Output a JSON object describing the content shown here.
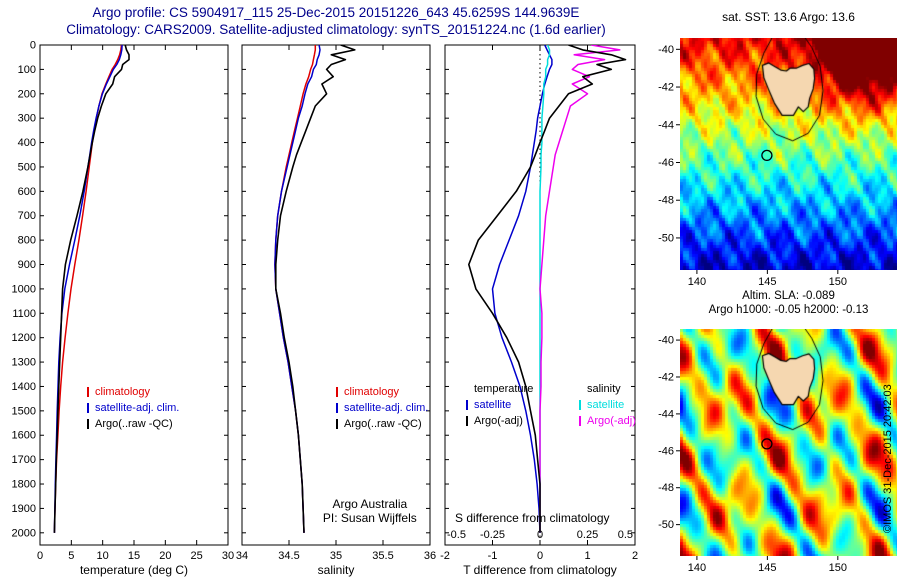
{
  "header": {
    "title_line1": "Argo profile: CS 5904917_115 25-Dec-2015 20151226_643 45.6259S 144.9639E",
    "title_line2": "Climatology: CARS2009. Satellite-adjusted climatology: synTS_20151224.nc (1.6d earlier)"
  },
  "credit": "©IMOS 31-Dec-2015 20:42:03",
  "colors": {
    "climatology": "#e00000",
    "satellite_adjusted": "#0000cc",
    "argo": "#000000",
    "satellite_salinity": "#00dddd",
    "argo_salinity": "#ee00ee",
    "title": "#00008b"
  },
  "chart_data": [
    {
      "id": "temperature_profile",
      "type": "line",
      "xlabel": "temperature (deg C)",
      "xlim": [
        0,
        30
      ],
      "xticks": [
        0,
        5,
        10,
        15,
        20,
        25,
        30
      ],
      "ylim": [
        0,
        2050
      ],
      "yticks": [
        0,
        100,
        200,
        300,
        400,
        500,
        600,
        700,
        800,
        900,
        1000,
        1100,
        1200,
        1300,
        1400,
        1500,
        1600,
        1700,
        1800,
        1900,
        2000
      ],
      "depth": [
        0,
        20,
        40,
        60,
        80,
        100,
        130,
        160,
        200,
        250,
        300,
        350,
        400,
        450,
        500,
        600,
        700,
        800,
        900,
        1000,
        1100,
        1200,
        1300,
        1400,
        1500,
        1600,
        1700,
        1800,
        1900,
        2000
      ],
      "series": [
        {
          "id": "climatology",
          "label": "climatology",
          "color": "#e00000",
          "values": [
            13.0,
            12.9,
            12.7,
            12.4,
            12.0,
            11.5,
            11.0,
            10.5,
            9.9,
            9.4,
            9.0,
            8.65,
            8.35,
            8.1,
            7.85,
            7.35,
            6.8,
            6.2,
            5.55,
            4.95,
            4.45,
            4.0,
            3.6,
            3.3,
            3.05,
            2.85,
            2.65,
            2.5,
            2.4,
            2.3
          ]
        },
        {
          "id": "satellite-adj-clim",
          "label": "satellite-adj. clim.",
          "color": "#0000cc",
          "values": [
            13.1,
            13.05,
            12.9,
            12.65,
            12.25,
            11.7,
            11.15,
            10.6,
            9.95,
            9.4,
            8.95,
            8.57,
            8.23,
            7.94,
            7.65,
            7.05,
            6.35,
            5.55,
            4.7,
            3.95,
            3.5,
            3.2,
            3.0,
            2.88,
            2.75,
            2.65,
            2.53,
            2.44,
            2.38,
            2.3
          ]
        },
        {
          "id": "argo-raw",
          "label": "Argo(..raw -QC)",
          "color": "#000000",
          "width": 1.6,
          "values": [
            13.6,
            13.8,
            14.2,
            14.2,
            13.2,
            13.0,
            11.9,
            11.6,
            10.5,
            9.8,
            9.2,
            8.75,
            8.35,
            8.0,
            7.65,
            6.85,
            5.9,
            4.9,
            4.05,
            3.6,
            3.45,
            3.3,
            3.15,
            3.0,
            2.85,
            2.75,
            2.6,
            2.5,
            2.4,
            2.3
          ]
        }
      ],
      "legend": [
        {
          "label": "climatology",
          "color": "#e00000"
        },
        {
          "label": "satellite-adj. clim.",
          "color": "#0000cc"
        },
        {
          "label": "Argo(..raw -QC)",
          "color": "#000000"
        }
      ]
    },
    {
      "id": "salinity_profile",
      "type": "line",
      "xlabel": "salinity",
      "xlim": [
        34,
        36
      ],
      "xticks": [
        34,
        34.5,
        35,
        35.5,
        36
      ],
      "ylim": [
        0,
        2050
      ],
      "yticks": [
        0,
        100,
        200,
        300,
        400,
        500,
        600,
        700,
        800,
        900,
        1000,
        1100,
        1200,
        1300,
        1400,
        1500,
        1600,
        1700,
        1800,
        1900,
        2000
      ],
      "depth": [
        0,
        20,
        40,
        60,
        80,
        100,
        130,
        160,
        200,
        250,
        300,
        350,
        400,
        450,
        500,
        600,
        700,
        800,
        900,
        1000,
        1100,
        1200,
        1300,
        1400,
        1500,
        1600,
        1700,
        1800,
        1900,
        2000
      ],
      "series": [
        {
          "id": "climatology",
          "label": "climatology",
          "color": "#e00000",
          "values": [
            34.78,
            34.78,
            34.77,
            34.76,
            34.75,
            34.73,
            34.71,
            34.68,
            34.65,
            34.62,
            34.59,
            34.56,
            34.53,
            34.5,
            34.47,
            34.42,
            34.38,
            34.36,
            34.35,
            34.36,
            34.4,
            34.44,
            34.49,
            34.53,
            34.57,
            34.6,
            34.62,
            34.64,
            34.65,
            34.66
          ]
        },
        {
          "id": "satellite-adj-clim",
          "label": "satellite-adj. clim.",
          "color": "#0000cc",
          "values": [
            34.82,
            34.83,
            34.82,
            34.8,
            34.79,
            34.76,
            34.74,
            34.7,
            34.67,
            34.64,
            34.6,
            34.57,
            34.54,
            34.51,
            34.48,
            34.42,
            34.38,
            34.36,
            34.35,
            34.36,
            34.4,
            34.44,
            34.49,
            34.53,
            34.57,
            34.6,
            34.62,
            34.64,
            34.65,
            34.66
          ]
        },
        {
          "id": "argo-raw",
          "label": "Argo(..raw -QC)",
          "color": "#000000",
          "width": 1.6,
          "values": [
            35.05,
            35.2,
            34.95,
            35.1,
            34.95,
            34.9,
            34.97,
            34.85,
            34.9,
            34.78,
            34.73,
            34.68,
            34.63,
            34.58,
            34.54,
            34.47,
            34.41,
            34.38,
            34.36,
            34.36,
            34.41,
            34.45,
            34.5,
            34.54,
            34.57,
            34.6,
            34.62,
            34.64,
            34.65,
            34.66
          ]
        }
      ],
      "legend": [
        {
          "label": "climatology",
          "color": "#e00000"
        },
        {
          "label": "satellite-adj. clim.",
          "color": "#0000cc"
        },
        {
          "label": "Argo(..raw -QC)",
          "color": "#000000"
        }
      ],
      "annotation": [
        "Argo Australia",
        "PI: Susan Wijffels"
      ]
    },
    {
      "id": "difference_profile",
      "type": "line",
      "xlabel": "T difference from climatology",
      "xlim": [
        -2,
        2
      ],
      "xticks": [
        -2,
        -1,
        0,
        1,
        2
      ],
      "zero_line": true,
      "ylim": [
        0,
        2050
      ],
      "yticks": [
        0,
        100,
        200,
        300,
        400,
        500,
        600,
        700,
        800,
        900,
        1000,
        1100,
        1200,
        1300,
        1400,
        1500,
        1600,
        1700,
        1800,
        1900,
        2000
      ],
      "depth": [
        0,
        20,
        40,
        60,
        80,
        100,
        130,
        160,
        200,
        250,
        300,
        350,
        400,
        450,
        500,
        600,
        700,
        800,
        900,
        1000,
        1100,
        1200,
        1300,
        1400,
        1500,
        1600,
        1700,
        1800,
        1900,
        2000
      ],
      "s_axis": {
        "label": "S difference from climatology",
        "ticks": [
          -0.5,
          -0.25,
          0,
          0.25,
          0.5
        ],
        "scale": 4
      },
      "series": [
        {
          "id": "t-diff-satellite",
          "label": "satellite",
          "color": "#0000cc",
          "scale": 1,
          "values": [
            0.1,
            0.15,
            0.2,
            0.25,
            0.25,
            0.2,
            0.15,
            0.1,
            0.05,
            0,
            -0.05,
            -0.08,
            -0.12,
            -0.16,
            -0.2,
            -0.3,
            -0.45,
            -0.65,
            -0.85,
            -1.0,
            -0.95,
            -0.8,
            -0.6,
            -0.42,
            -0.3,
            -0.2,
            -0.12,
            -0.06,
            -0.02,
            0
          ]
        },
        {
          "id": "s-diff-satellite",
          "label": "satellite",
          "color": "#00dddd",
          "scale": 4,
          "values": [
            0.04,
            0.05,
            0.05,
            0.04,
            0.04,
            0.03,
            0.03,
            0.02,
            0.02,
            0.015,
            0.01,
            0.01,
            0.01,
            0.005,
            0.005,
            0,
            0,
            0,
            0,
            0,
            0,
            0,
            0,
            0,
            0,
            0,
            0,
            0,
            0,
            0
          ]
        },
        {
          "id": "s-diff-argo",
          "label": "Argo(-adj)",
          "color": "#ee00ee",
          "scale": 4,
          "values": [
            0.27,
            0.42,
            0.18,
            0.34,
            0.2,
            0.17,
            0.26,
            0.17,
            0.25,
            0.16,
            0.14,
            0.12,
            0.1,
            0.08,
            0.07,
            0.05,
            0.03,
            0.02,
            0.01,
            0,
            0.01,
            0.01,
            0.005,
            0.005,
            0,
            0,
            0,
            0,
            0,
            0
          ]
        },
        {
          "id": "t-diff-argo",
          "label": "Argo(-adj)",
          "color": "#000000",
          "scale": 1,
          "width": 1.6,
          "values": [
            0.6,
            0.9,
            1.5,
            1.8,
            1.2,
            1.5,
            0.9,
            1.1,
            0.6,
            0.4,
            0.2,
            0.1,
            0,
            -0.1,
            -0.2,
            -0.5,
            -0.9,
            -1.3,
            -1.5,
            -1.35,
            -1.0,
            -0.7,
            -0.45,
            -0.3,
            -0.2,
            -0.1,
            -0.05,
            0,
            0,
            0
          ]
        }
      ],
      "legend_groups": [
        {
          "title": "temperature",
          "entries": [
            {
              "label": "satellite",
              "color": "#0000cc"
            },
            {
              "label": "Argo(-adj)",
              "color": "#000000"
            }
          ]
        },
        {
          "title": "salinity",
          "entries": [
            {
              "label": "satellite",
              "color": "#00dddd"
            },
            {
              "label": "Argo(-adj)",
              "color": "#ee00ee"
            }
          ]
        }
      ]
    },
    {
      "id": "sst_map",
      "type": "heatmap",
      "title": "sat. SST: 13.6 Argo: 13.6",
      "colormap": "jet",
      "xticks": [
        140,
        145,
        150
      ],
      "yticks": [
        -40,
        -42,
        -44,
        -46,
        -48,
        -50
      ],
      "lon_range": [
        138.8,
        154.2
      ],
      "lat_range": [
        -51.7,
        -39.4
      ],
      "marker": {
        "lon": 144.9639,
        "lat": -45.6259
      }
    },
    {
      "id": "sla_map",
      "type": "heatmap",
      "title": "Altim. SLA: -0.089",
      "subtitle": "Argo h1000: -0.05 h2000: -0.13",
      "colormap": "jet",
      "xticks": [
        140,
        145,
        150
      ],
      "yticks": [
        -40,
        -42,
        -44,
        -46,
        -48,
        -50
      ],
      "lon_range": [
        138.8,
        154.2
      ],
      "lat_range": [
        -51.7,
        -39.4
      ],
      "marker": {
        "lon": 144.9639,
        "lat": -45.6259
      }
    }
  ]
}
